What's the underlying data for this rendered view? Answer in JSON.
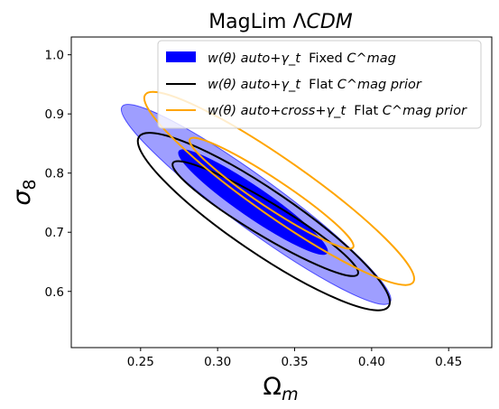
{
  "chart_data": {
    "type": "contour",
    "title": {
      "prefix": "MagLim ",
      "sym": "Λ",
      "model": "CDM"
    },
    "xlabel": {
      "base": "Ω",
      "sub": "m"
    },
    "ylabel": {
      "base": "σ",
      "sub": "8"
    },
    "xlim": [
      0.205,
      0.478
    ],
    "ylim": [
      0.505,
      1.03
    ],
    "xticks": [
      {
        "value": 0.25,
        "label": "0.25"
      },
      {
        "value": 0.3,
        "label": "0.30"
      },
      {
        "value": 0.35,
        "label": "0.35"
      },
      {
        "value": 0.4,
        "label": "0.40"
      },
      {
        "value": 0.45,
        "label": "0.45"
      }
    ],
    "yticks": [
      {
        "value": 0.6,
        "label": "0.6"
      },
      {
        "value": 0.7,
        "label": "0.7"
      },
      {
        "value": 0.8,
        "label": "0.8"
      },
      {
        "value": 0.9,
        "label": "0.9"
      },
      {
        "value": 1.0,
        "label": "1.0"
      }
    ],
    "grid": false,
    "legend_position": "upper right",
    "series": [
      {
        "name_math": "w(θ) auto+γ_t",
        "name_text": "  Fixed ",
        "name_tail": "C^mag",
        "style": "filled",
        "color": "#0000ff",
        "contours": [
          {
            "level": "95%",
            "center": [
              0.325,
              0.747
            ],
            "outline": [
              [
                0.246,
                0.948
              ],
              [
                0.42,
                0.617
              ]
            ],
            "half_width_sigma8": 0.053,
            "opacity": 0.38
          },
          {
            "level": "68%",
            "center": [
              0.323,
              0.751
            ],
            "outline": [
              [
                0.276,
                0.857
              ],
              [
                0.372,
                0.685
              ]
            ],
            "half_width_sigma8": 0.03,
            "opacity": 1.0
          }
        ]
      },
      {
        "name_math": "w(θ) auto+γ_t",
        "name_text": "  Flat ",
        "name_tail": "C^mag prior",
        "style": "line",
        "color": "#000000",
        "contours": [
          {
            "level": "95%",
            "center": [
              0.33,
              0.718
            ],
            "outline": [
              [
                0.254,
                0.869
              ],
              [
                0.416,
                0.582
              ]
            ],
            "half_width_sigma8": 0.064
          },
          {
            "level": "68%",
            "center": [
              0.331,
              0.723
            ],
            "outline": [
              [
                0.274,
                0.81
              ],
              [
                0.394,
                0.622
              ]
            ],
            "half_width_sigma8": 0.033
          }
        ]
      },
      {
        "name_math": "w(θ) auto+cross+γ_t",
        "name_text": "  Flat ",
        "name_tail": "C^mag prior",
        "style": "line",
        "color": "#ffa500",
        "contours": [
          {
            "level": "95%",
            "center": [
              0.34,
              0.774
            ],
            "outline": [
              [
                0.254,
                0.932
              ],
              [
                0.428,
                0.615
              ]
            ],
            "half_width_sigma8": 0.058
          },
          {
            "level": "68%",
            "center": [
              0.335,
              0.766
            ],
            "outline": [
              [
                0.283,
                0.855
              ],
              [
                0.389,
                0.672
              ]
            ],
            "half_width_sigma8": 0.029
          }
        ]
      }
    ]
  }
}
